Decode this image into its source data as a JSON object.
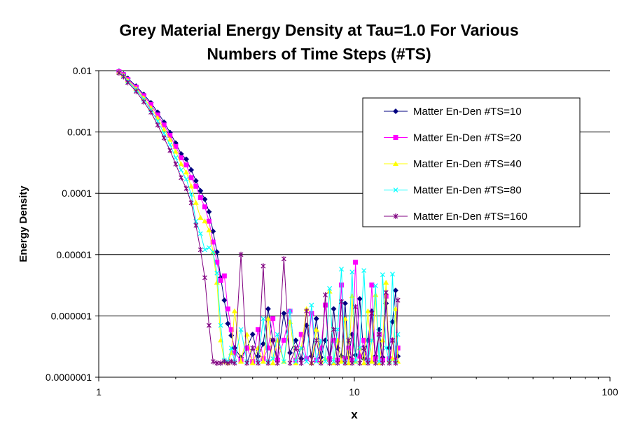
{
  "chart_data": {
    "type": "line",
    "title": "Grey Material Energy Density at Tau=1.0 For Various",
    "title_line2": "Numbers of Time Steps (#TS)",
    "xlabel": "x",
    "ylabel": "Energy Density",
    "x_scale": "log",
    "y_scale": "log",
    "xlim": [
      1,
      100
    ],
    "ylim": [
      1e-07,
      0.01
    ],
    "x_ticks": [
      "1",
      "10",
      "100"
    ],
    "y_ticks": [
      "0.01",
      "0.001",
      "0.0001",
      "0.00001",
      "0.000001",
      "0.0000001"
    ],
    "grid": "horizontal major gridlines",
    "legend_position": "top-right",
    "x": [
      1.2,
      1.25,
      1.3,
      1.4,
      1.5,
      1.6,
      1.7,
      1.8,
      1.9,
      2.0,
      2.1,
      2.2,
      2.3,
      2.4,
      2.5,
      2.6,
      2.7,
      2.8,
      2.9,
      3.0,
      3.1,
      3.2,
      3.3,
      3.4,
      3.6,
      3.8,
      4.0,
      4.2,
      4.4,
      4.6,
      4.8,
      5.0,
      5.3,
      5.6,
      5.9,
      6.2,
      6.5,
      6.8,
      7.1,
      7.4,
      7.7,
      8.0,
      8.3,
      8.6,
      8.9,
      9.2,
      9.5,
      9.8,
      10.1,
      10.5,
      10.9,
      11.3,
      11.7,
      12.1,
      12.5,
      12.9,
      13.3,
      13.7,
      14.1,
      14.5,
      14.8
    ],
    "series": [
      {
        "name": "Matter En-Den #TS=10",
        "color": "#000080",
        "marker": "diamond",
        "values": [
          0.0098,
          0.0088,
          0.0075,
          0.0056,
          0.0041,
          0.003,
          0.0021,
          0.00145,
          0.00098,
          0.00066,
          0.00044,
          0.00036,
          0.00024,
          0.00016,
          0.00011,
          8e-05,
          5e-05,
          2.4e-05,
          1.1e-05,
          4.2e-06,
          1.8e-06,
          7.5e-07,
          4.8e-07,
          3e-07,
          2.1e-07,
          3e-07,
          5e-07,
          2.2e-07,
          3.5e-07,
          1.3e-06,
          4e-07,
          2e-07,
          1.1e-06,
          2.5e-07,
          4e-07,
          2e-07,
          7e-07,
          2.2e-07,
          9e-07,
          2.1e-07,
          4e-07,
          2e-07,
          1.3e-06,
          3e-07,
          2.2e-07,
          1.6e-06,
          2.1e-07,
          5e-07,
          2.3e-07,
          1.9e-06,
          2e-07,
          4e-07,
          1.2e-06,
          2.2e-07,
          6e-07,
          2.1e-07,
          1.6e-06,
          3e-07,
          8e-07,
          2.6e-06,
          2.2e-07
        ]
      },
      {
        "name": "Matter En-Den #TS=20",
        "color": "#FF00FF",
        "marker": "square",
        "values": [
          0.0096,
          0.0086,
          0.0072,
          0.0054,
          0.0039,
          0.0028,
          0.0019,
          0.0013,
          0.00088,
          0.00058,
          0.00038,
          0.00029,
          0.00018,
          0.00013,
          8.5e-05,
          6e-05,
          3.5e-05,
          1.6e-05,
          7.5e-06,
          3.8e-06,
          4.5e-06,
          1.3e-06,
          6e-07,
          2.5e-07,
          1.9e-07,
          3e-07,
          1.8e-07,
          6e-07,
          2e-07,
          3e-07,
          9e-07,
          1.9e-07,
          4e-07,
          1.2e-06,
          1.9e-07,
          5e-07,
          2e-07,
          1.1e-06,
          1.9e-07,
          3e-07,
          1.5e-06,
          2e-07,
          4e-07,
          1.9e-07,
          3.2e-06,
          2e-07,
          3e-07,
          1.9e-07,
          7.5e-06,
          2.2e-07,
          4e-07,
          1.9e-07,
          3.2e-06,
          2e-07,
          5e-07,
          1.9e-07,
          2.1e-06,
          2e-07,
          4e-07,
          1.9e-07,
          3e-07
        ]
      },
      {
        "name": "Matter En-Den #TS=40",
        "color": "#FFFF00",
        "marker": "triangle",
        "values": [
          0.0094,
          0.0084,
          0.0069,
          0.0051,
          0.0036,
          0.0025,
          0.0017,
          0.0011,
          0.00075,
          0.00048,
          0.0003,
          0.00022,
          0.00013,
          7e-05,
          4e-05,
          3.5e-05,
          2.5e-05,
          1.1e-05,
          3.5e-06,
          4e-07,
          1.8e-07,
          1.7e-07,
          2.5e-07,
          1.2e-06,
          1.8e-07,
          5e-07,
          1.7e-07,
          3e-07,
          1.8e-07,
          9e-07,
          1.7e-07,
          4e-07,
          1.8e-07,
          8e-07,
          1.7e-07,
          3e-07,
          1.3e-06,
          1.7e-07,
          6e-07,
          1.8e-07,
          2e-07,
          2.5e-06,
          1.7e-07,
          4e-07,
          1.8e-07,
          9e-07,
          1.7e-07,
          2.1e-06,
          1.8e-07,
          3e-07,
          1.7e-07,
          1.2e-06,
          1.8e-07,
          2.2e-06,
          1.7e-07,
          4e-07,
          3.5e-06,
          1.8e-07,
          2e-07,
          1.3e-06,
          1.8e-07
        ]
      },
      {
        "name": "Matter En-Den #TS=80",
        "color": "#00FFFF",
        "marker": "x",
        "values": [
          0.0093,
          0.0082,
          0.0067,
          0.0049,
          0.0034,
          0.0023,
          0.0015,
          0.00095,
          0.00062,
          0.00038,
          0.00024,
          0.00017,
          9.5e-05,
          3.5e-05,
          2.2e-05,
          1.2e-05,
          1.3e-05,
          1.1e-05,
          5e-06,
          7e-07,
          1.9e-07,
          1.8e-07,
          3e-07,
          1.8e-07,
          6e-07,
          1.8e-07,
          3e-07,
          1.8e-07,
          9e-07,
          1.8e-07,
          2e-07,
          5e-07,
          1.8e-07,
          1.2e-06,
          1.8e-07,
          3e-07,
          1.8e-07,
          1.5e-06,
          1.8e-07,
          4e-07,
          1.8e-07,
          2.8e-06,
          1.8e-07,
          6e-07,
          5.8e-06,
          1.8e-07,
          4e-07,
          5.2e-06,
          1.8e-07,
          3e-07,
          5.5e-06,
          1.8e-07,
          4e-07,
          3.1e-06,
          1.8e-07,
          4.7e-06,
          3e-07,
          1.8e-07,
          4.8e-06,
          1.8e-07,
          5e-07
        ]
      },
      {
        "name": "Matter En-Den #TS=160",
        "color": "#800080",
        "marker": "star",
        "values": [
          0.0092,
          0.008,
          0.0064,
          0.0046,
          0.0031,
          0.0021,
          0.0013,
          0.0008,
          0.0005,
          0.0003,
          0.00018,
          0.00012,
          7e-05,
          3e-05,
          1.2e-05,
          4.2e-06,
          7e-07,
          1.8e-07,
          1.7e-07,
          1.7e-07,
          1.8e-07,
          1.7e-07,
          1.8e-07,
          1.7e-07,
          1e-05,
          1.7e-07,
          3e-07,
          1.7e-07,
          6.5e-06,
          1.7e-07,
          4e-07,
          1.7e-07,
          8.5e-06,
          1.7e-07,
          3e-07,
          1.7e-07,
          1.2e-06,
          1.7e-07,
          4e-07,
          1.7e-07,
          2.2e-06,
          1.7e-07,
          6e-07,
          1.7e-07,
          1.7e-06,
          1.7e-07,
          4e-07,
          1.7e-07,
          1.4e-06,
          1.7e-07,
          3e-07,
          1.7e-07,
          1.1e-06,
          1.7e-07,
          5e-07,
          1.7e-07,
          2.4e-06,
          1.7e-07,
          4e-07,
          1.7e-07,
          1.8e-06
        ]
      }
    ]
  }
}
